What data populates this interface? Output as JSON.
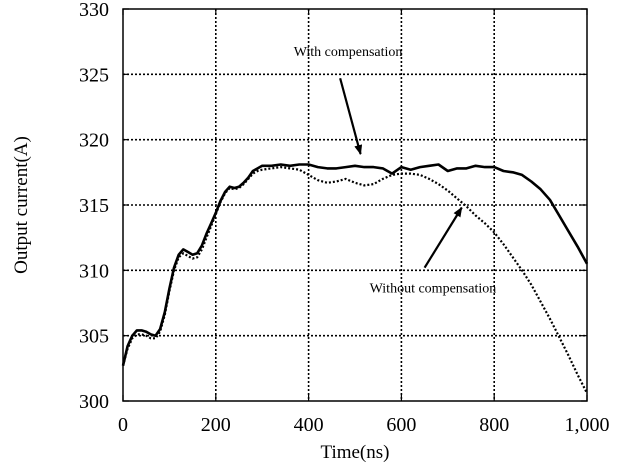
{
  "chart_data": {
    "type": "line",
    "title": "",
    "xlabel": "Time(ns)",
    "ylabel": "Output current(A)",
    "xlim": [
      0,
      1000
    ],
    "ylim": [
      300,
      330
    ],
    "grid": true,
    "xticks": [
      {
        "value": 0,
        "label": "0"
      },
      {
        "value": 200,
        "label": "200"
      },
      {
        "value": 400,
        "label": "400"
      },
      {
        "value": 600,
        "label": "600"
      },
      {
        "value": 800,
        "label": "800"
      },
      {
        "value": 1000,
        "label": "1,000"
      }
    ],
    "yticks": [
      {
        "value": 300,
        "label": "300"
      },
      {
        "value": 305,
        "label": "305"
      },
      {
        "value": 310,
        "label": "310"
      },
      {
        "value": 315,
        "label": "315"
      },
      {
        "value": 320,
        "label": "320"
      },
      {
        "value": 325,
        "label": "325"
      },
      {
        "value": 330,
        "label": "330"
      }
    ],
    "series": [
      {
        "name": "With compensation",
        "style": "solid",
        "color": "#000000",
        "x": [
          0,
          10,
          20,
          30,
          40,
          50,
          60,
          70,
          80,
          90,
          100,
          110,
          120,
          130,
          140,
          150,
          160,
          170,
          180,
          190,
          200,
          210,
          220,
          230,
          240,
          250,
          260,
          270,
          280,
          290,
          300,
          310,
          320,
          340,
          360,
          380,
          400,
          420,
          440,
          460,
          480,
          500,
          520,
          540,
          560,
          580,
          600,
          620,
          640,
          660,
          680,
          700,
          720,
          740,
          760,
          780,
          800,
          820,
          840,
          860,
          880,
          900,
          920,
          940,
          960,
          980,
          1000
        ],
        "y": [
          302.7,
          304.2,
          305.0,
          305.4,
          305.4,
          305.3,
          305.1,
          305.0,
          305.5,
          306.8,
          308.6,
          310.2,
          311.2,
          311.6,
          311.4,
          311.2,
          311.3,
          311.9,
          312.8,
          313.6,
          314.4,
          315.3,
          316.0,
          316.4,
          316.3,
          316.4,
          316.7,
          317.1,
          317.6,
          317.8,
          318.0,
          318.0,
          318.0,
          318.1,
          318.0,
          318.1,
          318.1,
          317.9,
          317.8,
          317.8,
          317.9,
          318.0,
          317.9,
          317.9,
          317.8,
          317.4,
          317.9,
          317.7,
          317.9,
          318.0,
          318.1,
          317.6,
          317.8,
          317.8,
          318.0,
          317.9,
          317.9,
          317.6,
          317.5,
          317.3,
          316.8,
          316.2,
          315.4,
          314.2,
          313.0,
          311.8,
          310.5
        ]
      },
      {
        "name": "Without compensation",
        "style": "dotted",
        "color": "#000000",
        "x": [
          0,
          10,
          20,
          30,
          40,
          50,
          60,
          70,
          80,
          90,
          100,
          110,
          120,
          130,
          140,
          150,
          160,
          170,
          180,
          190,
          200,
          210,
          220,
          230,
          240,
          250,
          260,
          270,
          280,
          290,
          300,
          320,
          340,
          360,
          380,
          400,
          420,
          440,
          460,
          480,
          500,
          520,
          540,
          560,
          580,
          600,
          620,
          640,
          660,
          680,
          700,
          720,
          740,
          760,
          780,
          800,
          820,
          840,
          860,
          880,
          900,
          920,
          940,
          960,
          980,
          1000
        ],
        "y": [
          302.7,
          304.0,
          304.8,
          305.1,
          305.1,
          305.0,
          304.8,
          304.8,
          305.3,
          306.6,
          308.4,
          310.0,
          311.0,
          311.3,
          311.1,
          310.9,
          311.0,
          311.6,
          312.5,
          313.4,
          314.3,
          315.2,
          315.9,
          316.3,
          316.2,
          316.3,
          316.6,
          317.0,
          317.4,
          317.6,
          317.7,
          317.8,
          317.9,
          317.8,
          317.7,
          317.3,
          316.9,
          316.7,
          316.8,
          317.0,
          316.7,
          316.5,
          316.6,
          317.0,
          317.3,
          317.4,
          317.4,
          317.3,
          317.0,
          316.6,
          316.1,
          315.5,
          314.9,
          314.2,
          313.6,
          312.9,
          312.0,
          311.0,
          310.0,
          308.9,
          307.6,
          306.3,
          304.9,
          303.5,
          302.0,
          300.6
        ]
      }
    ],
    "annotations": [
      {
        "text": "With compensation",
        "x": 485,
        "y": 326.4,
        "arrow_from": [
          468,
          324.7
        ],
        "arrow_to": [
          512,
          318.9
        ]
      },
      {
        "text": "Without compensation",
        "x": 668,
        "y": 308.3,
        "arrow_from": [
          650,
          310.2
        ],
        "arrow_to": [
          730,
          314.8
        ]
      }
    ]
  }
}
